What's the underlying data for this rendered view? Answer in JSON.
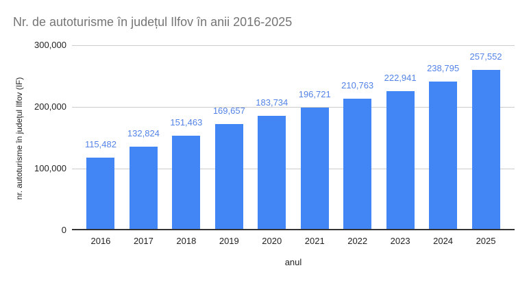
{
  "chart_data": {
    "type": "bar",
    "title": "Nr. de autoturisme în județul Ilfov în anii 2016-2025",
    "xlabel": "anul",
    "ylabel": "nr. autoturisme în județul Ilfov (IF)",
    "categories": [
      "2016",
      "2017",
      "2018",
      "2019",
      "2020",
      "2021",
      "2022",
      "2023",
      "2024",
      "2025"
    ],
    "values": [
      115482,
      132824,
      151463,
      169657,
      183734,
      196721,
      210763,
      222941,
      238795,
      257552
    ],
    "value_labels": [
      "115,482",
      "132,824",
      "151,463",
      "169,657",
      "183,734",
      "196,721",
      "210,763",
      "222,941",
      "238,795",
      "257,552"
    ],
    "ylim": [
      0,
      300000
    ],
    "yticks": [
      {
        "value": 0,
        "label": "0"
      },
      {
        "value": 100000,
        "label": "100,000"
      },
      {
        "value": 200000,
        "label": "200,000"
      },
      {
        "value": 300000,
        "label": "300,000"
      }
    ],
    "grid": true,
    "legend": "none",
    "colors": {
      "bar": "#4285f4",
      "value_label": "#5383e8",
      "title": "#757575",
      "tick": "#222222",
      "gridline": "#cccccc",
      "axis_line": "#333333"
    }
  }
}
